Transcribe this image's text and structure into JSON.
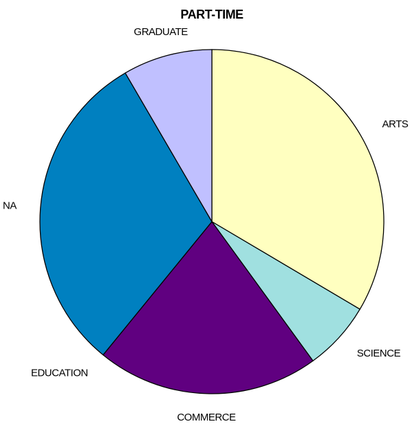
{
  "chart_data": {
    "type": "pie",
    "title": "PART-TIME",
    "categories": [
      "ARTS",
      "SCIENCE",
      "COMMERCE",
      "EDUCATION",
      "NA",
      "GRADUATE"
    ],
    "values": [
      33.5,
      6.5,
      20.9,
      0,
      30.7,
      8.4
    ],
    "colors": [
      "#ffffc0",
      "#a0e0e0",
      "#600080",
      "#808080",
      "#0080c0",
      "#c0c0ff"
    ]
  }
}
